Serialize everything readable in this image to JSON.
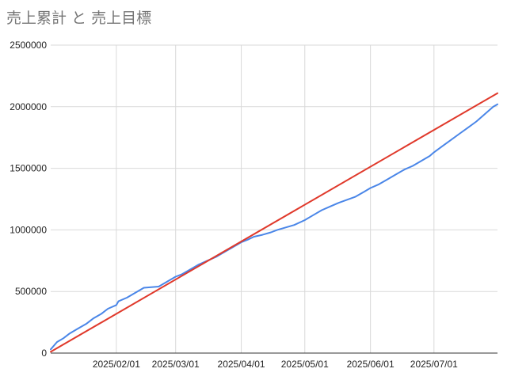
{
  "chart_data": {
    "type": "line",
    "title": "売上累計 と 売上目標",
    "xlabel": "",
    "ylabel": "",
    "x_range": [
      "2025-01-01",
      "2025-07-31"
    ],
    "ylim": [
      0,
      2500000
    ],
    "y_ticks": [
      0,
      500000,
      1000000,
      1500000,
      2000000,
      2500000
    ],
    "x_ticks": [
      "2025/02/01",
      "2025/03/01",
      "2025/04/01",
      "2025/05/01",
      "2025/06/01",
      "2025/07/01"
    ],
    "grid": true,
    "legend": "none",
    "colors": {
      "actual": "#4a86e8",
      "target": "#e0392b",
      "grid": "#d9d9d9",
      "axis": "#333333"
    },
    "series": [
      {
        "key": "actual",
        "points": [
          [
            "2025-01-01",
            30000
          ],
          [
            "2025-01-04",
            90000
          ],
          [
            "2025-01-07",
            120000
          ],
          [
            "2025-01-10",
            160000
          ],
          [
            "2025-01-14",
            200000
          ],
          [
            "2025-01-18",
            240000
          ],
          [
            "2025-01-21",
            280000
          ],
          [
            "2025-01-25",
            320000
          ],
          [
            "2025-01-28",
            360000
          ],
          [
            "2025-02-01",
            390000
          ],
          [
            "2025-02-02",
            420000
          ],
          [
            "2025-02-06",
            450000
          ],
          [
            "2025-02-10",
            490000
          ],
          [
            "2025-02-14",
            530000
          ],
          [
            "2025-02-21",
            540000
          ],
          [
            "2025-02-25",
            580000
          ],
          [
            "2025-03-01",
            620000
          ],
          [
            "2025-03-04",
            640000
          ],
          [
            "2025-03-08",
            680000
          ],
          [
            "2025-03-12",
            720000
          ],
          [
            "2025-03-16",
            750000
          ],
          [
            "2025-03-20",
            780000
          ],
          [
            "2025-03-24",
            820000
          ],
          [
            "2025-03-28",
            860000
          ],
          [
            "2025-04-01",
            900000
          ],
          [
            "2025-04-04",
            920000
          ],
          [
            "2025-04-07",
            945000
          ],
          [
            "2025-04-11",
            960000
          ],
          [
            "2025-04-15",
            980000
          ],
          [
            "2025-04-18",
            1000000
          ],
          [
            "2025-04-22",
            1020000
          ],
          [
            "2025-04-26",
            1040000
          ],
          [
            "2025-05-01",
            1080000
          ],
          [
            "2025-05-05",
            1120000
          ],
          [
            "2025-05-09",
            1160000
          ],
          [
            "2025-05-13",
            1190000
          ],
          [
            "2025-05-17",
            1220000
          ],
          [
            "2025-05-21",
            1245000
          ],
          [
            "2025-05-25",
            1270000
          ],
          [
            "2025-05-29",
            1310000
          ],
          [
            "2025-06-01",
            1340000
          ],
          [
            "2025-06-05",
            1370000
          ],
          [
            "2025-06-09",
            1410000
          ],
          [
            "2025-06-13",
            1450000
          ],
          [
            "2025-06-17",
            1490000
          ],
          [
            "2025-06-21",
            1520000
          ],
          [
            "2025-06-25",
            1560000
          ],
          [
            "2025-06-29",
            1600000
          ],
          [
            "2025-07-01",
            1630000
          ],
          [
            "2025-07-05",
            1680000
          ],
          [
            "2025-07-09",
            1730000
          ],
          [
            "2025-07-13",
            1780000
          ],
          [
            "2025-07-17",
            1830000
          ],
          [
            "2025-07-21",
            1880000
          ],
          [
            "2025-07-25",
            1940000
          ],
          [
            "2025-07-29",
            2000000
          ],
          [
            "2025-07-31",
            2020000
          ]
        ]
      },
      {
        "key": "target",
        "points": [
          [
            "2025-01-01",
            10000
          ],
          [
            "2025-07-31",
            2110000
          ]
        ]
      }
    ]
  }
}
